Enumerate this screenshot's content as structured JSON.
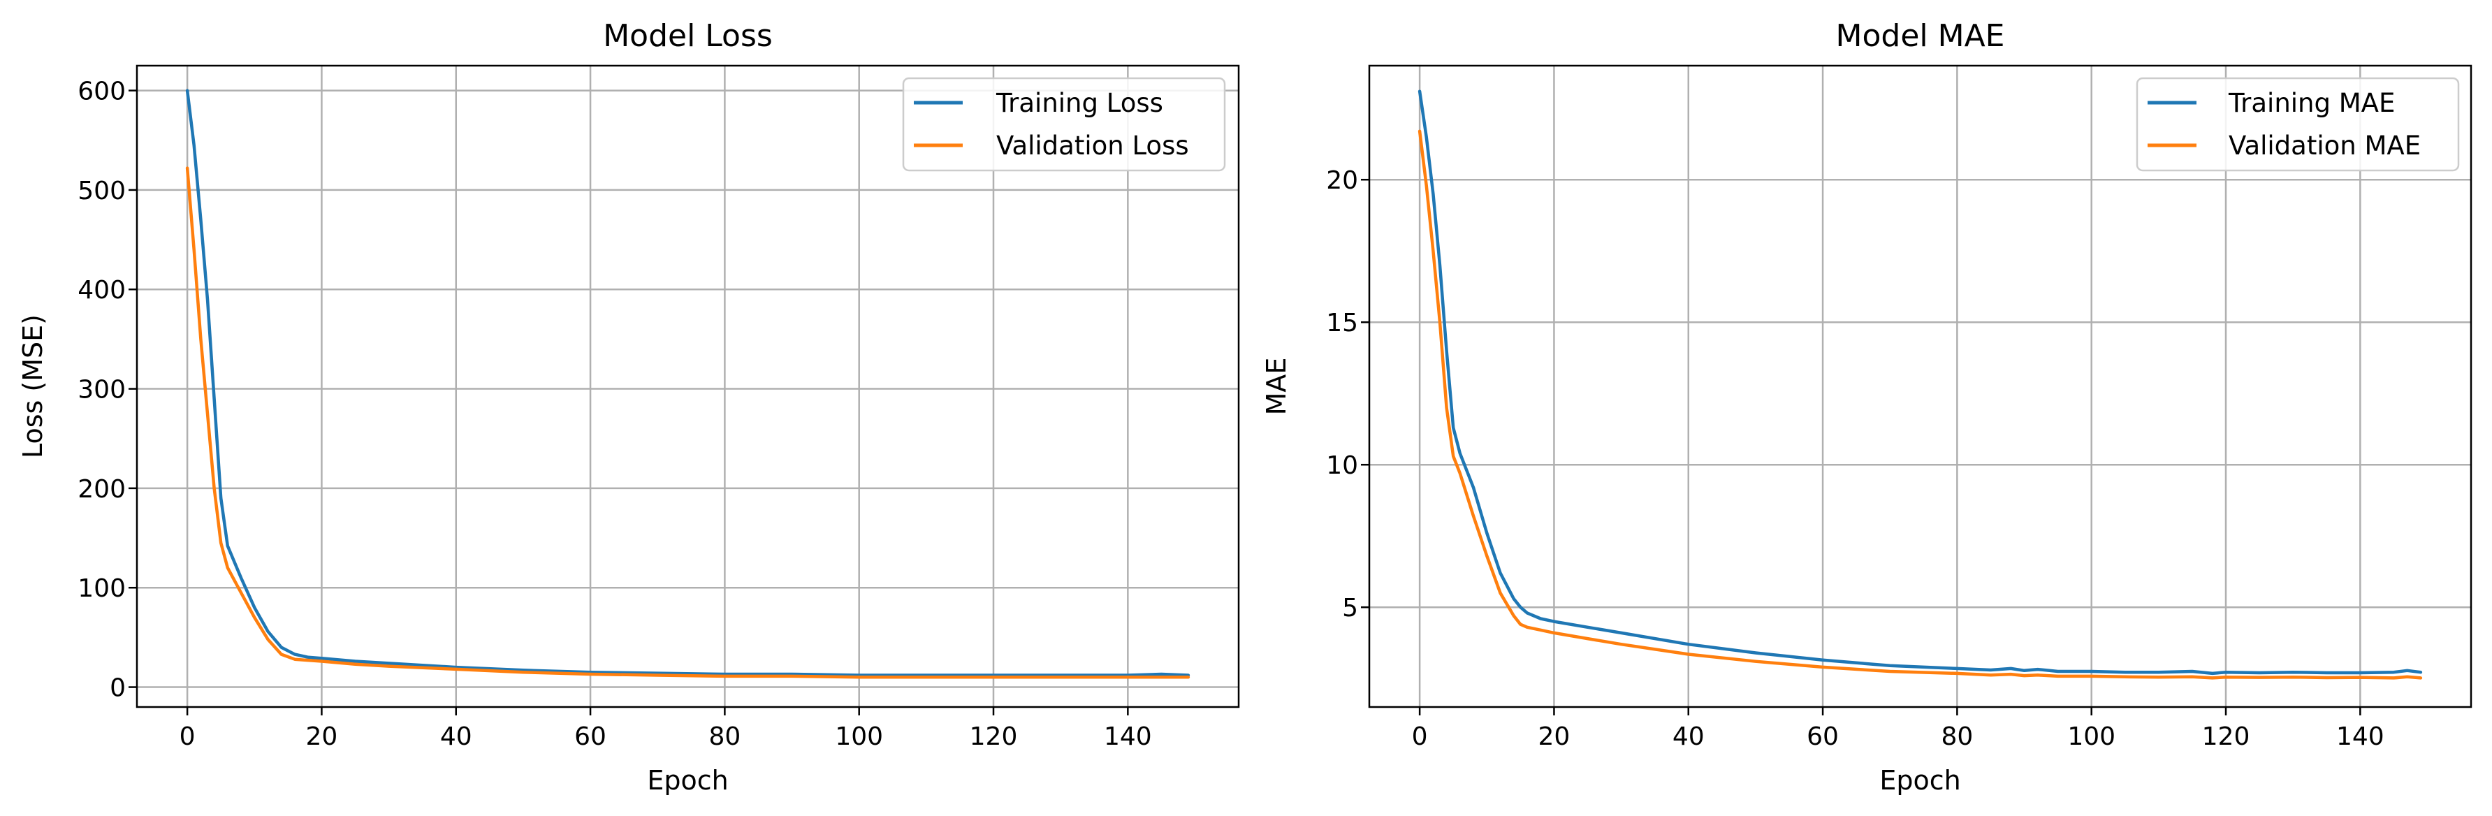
{
  "chart_data": [
    {
      "type": "line",
      "title": "Model Loss",
      "xlabel": "Epoch",
      "ylabel": "Loss (MSE)",
      "xlim": [
        -7.5,
        156.5
      ],
      "ylim": [
        -20,
        625
      ],
      "xticks": [
        0,
        20,
        40,
        60,
        80,
        100,
        120,
        140
      ],
      "yticks": [
        0,
        100,
        200,
        300,
        400,
        500,
        600
      ],
      "grid": true,
      "legend_loc": "top-right",
      "series": [
        {
          "name": "Training Loss",
          "color": "#1f77b4",
          "x": [
            0,
            1,
            2,
            3,
            4,
            5,
            6,
            8,
            10,
            12,
            14,
            16,
            18,
            20,
            25,
            30,
            40,
            50,
            60,
            70,
            80,
            90,
            100,
            110,
            120,
            130,
            140,
            145,
            149
          ],
          "y": [
            600,
            545,
            470,
            390,
            290,
            190,
            142,
            110,
            80,
            56,
            40,
            33,
            30,
            29,
            26,
            24,
            20,
            17,
            15,
            14,
            13,
            13,
            12,
            12,
            12,
            12,
            12,
            13,
            12
          ]
        },
        {
          "name": "Validation Loss",
          "color": "#ff7f0e",
          "x": [
            0,
            1,
            2,
            3,
            4,
            5,
            6,
            8,
            10,
            12,
            14,
            16,
            18,
            20,
            25,
            30,
            40,
            50,
            60,
            70,
            80,
            90,
            100,
            110,
            120,
            130,
            140,
            145,
            149
          ],
          "y": [
            522,
            440,
            350,
            275,
            200,
            145,
            120,
            95,
            70,
            48,
            33,
            28,
            27,
            26,
            23,
            21,
            18,
            15,
            13,
            12,
            11,
            11,
            10,
            10,
            10,
            10,
            10,
            10,
            10
          ]
        }
      ]
    },
    {
      "type": "line",
      "title": "Model MAE",
      "xlabel": "Epoch",
      "ylabel": "MAE",
      "xlim": [
        -7.5,
        156.5
      ],
      "ylim": [
        1.5,
        24.0
      ],
      "xticks": [
        0,
        20,
        40,
        60,
        80,
        100,
        120,
        140
      ],
      "yticks": [
        5,
        10,
        15,
        20
      ],
      "grid": true,
      "legend_loc": "top-right",
      "series": [
        {
          "name": "Training MAE",
          "color": "#1f77b4",
          "x": [
            0,
            1,
            2,
            3,
            4,
            5,
            6,
            8,
            10,
            12,
            14,
            15,
            16,
            18,
            20,
            25,
            30,
            40,
            50,
            60,
            70,
            80,
            85,
            88,
            90,
            92,
            95,
            100,
            105,
            110,
            115,
            118,
            120,
            125,
            130,
            135,
            140,
            145,
            147,
            149
          ],
          "y": [
            23.1,
            21.5,
            19.5,
            17.0,
            14.0,
            11.3,
            10.4,
            9.2,
            7.6,
            6.2,
            5.3,
            5.0,
            4.8,
            4.6,
            4.5,
            4.3,
            4.1,
            3.7,
            3.4,
            3.15,
            2.95,
            2.85,
            2.8,
            2.85,
            2.78,
            2.82,
            2.75,
            2.75,
            2.72,
            2.72,
            2.75,
            2.68,
            2.72,
            2.7,
            2.72,
            2.7,
            2.7,
            2.72,
            2.78,
            2.72
          ]
        },
        {
          "name": "Validation MAE",
          "color": "#ff7f0e",
          "x": [
            0,
            1,
            2,
            3,
            4,
            5,
            6,
            8,
            10,
            12,
            14,
            15,
            16,
            18,
            20,
            25,
            30,
            40,
            50,
            60,
            70,
            80,
            85,
            88,
            90,
            92,
            95,
            100,
            105,
            110,
            115,
            118,
            120,
            125,
            130,
            135,
            140,
            145,
            147,
            149
          ],
          "y": [
            21.7,
            19.8,
            17.5,
            15.0,
            12.0,
            10.3,
            9.7,
            8.2,
            6.8,
            5.5,
            4.7,
            4.4,
            4.3,
            4.2,
            4.1,
            3.9,
            3.7,
            3.35,
            3.1,
            2.9,
            2.75,
            2.68,
            2.62,
            2.65,
            2.6,
            2.62,
            2.58,
            2.58,
            2.56,
            2.55,
            2.56,
            2.52,
            2.55,
            2.54,
            2.55,
            2.53,
            2.54,
            2.52,
            2.56,
            2.52
          ]
        }
      ]
    }
  ]
}
